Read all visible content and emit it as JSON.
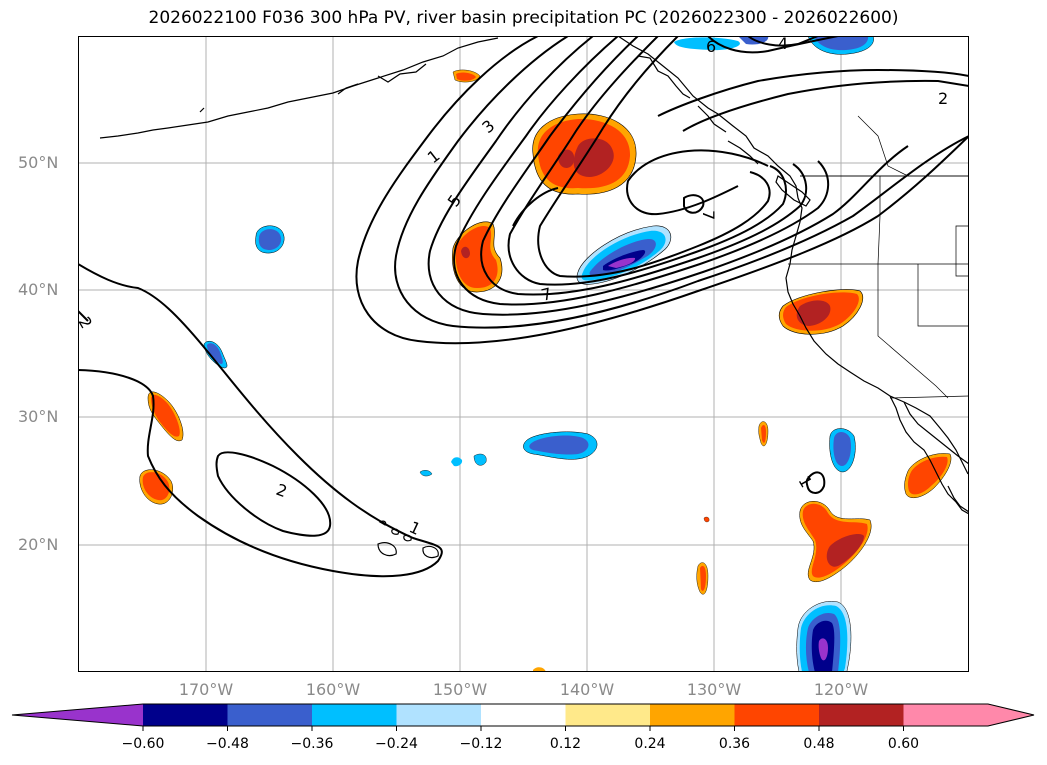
{
  "title": "2026022100 F036 300 hPa PV, river basin precipitation PC (2026022300 - 2026022600)",
  "map": {
    "lat_labels": [
      "50°N",
      "40°N",
      "30°N",
      "20°N"
    ],
    "lon_labels": [
      "170°W",
      "160°W",
      "150°W",
      "140°W",
      "130°W",
      "120°W"
    ],
    "contour_labels": [
      "1",
      "3",
      "5",
      "7",
      "7",
      "6",
      "4",
      "2",
      "2",
      "1",
      "1",
      "2"
    ]
  },
  "colorbar": {
    "ticks": [
      "−0.60",
      "−0.48",
      "−0.36",
      "−0.24",
      "−0.12",
      "0.12",
      "0.24",
      "0.36",
      "0.48",
      "0.60"
    ],
    "colors": [
      "#9933cc",
      "#00008b",
      "#3a5fcd",
      "#00bfff",
      "#b0e2ff",
      "#ffffff",
      "#ffe98a",
      "#ffa500",
      "#ff4500",
      "#b22222",
      "#ff88aa",
      "#ff88aa"
    ]
  }
}
